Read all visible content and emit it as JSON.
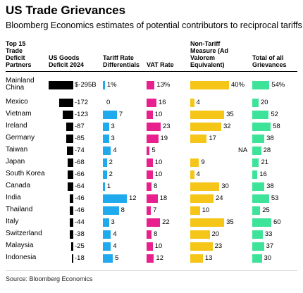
{
  "title": "US Trade Grievances",
  "subtitle": "Bloomberg Economics estimates of potential contributors to reciprocal tariffs",
  "source": "Source: Bloomberg Economics",
  "headers": {
    "partners": [
      "Top 15",
      "Trade",
      "Deficit",
      "Partners"
    ],
    "deficit": [
      "US Goods",
      "Deficit 2024"
    ],
    "tariff": [
      "Tariff Rate",
      "Differentials"
    ],
    "vat": [
      "VAT Rate"
    ],
    "ntm": [
      "Non-Tariff",
      "Measure (Ad",
      "Valorem",
      "Equivalent)"
    ],
    "total": [
      "Total of all",
      "Grievances"
    ]
  },
  "colors": {
    "deficit": "#000000",
    "tariff": "#20aaee",
    "vat": "#e8208e",
    "ntm": "#f5c518",
    "total": "#3ee39a"
  },
  "chart_data": {
    "type": "table",
    "columns": [
      "Top 15 Trade Deficit Partners",
      "US Goods Deficit 2024",
      "Tariff Rate Differentials",
      "VAT Rate",
      "Non-Tariff Measure (Ad Valorem Equivalent)",
      "Total of all Grievances"
    ],
    "rows": [
      {
        "country": [
          "Mainland",
          "China"
        ],
        "deficit": -295,
        "deficit_label": "$-295B",
        "tariff": 1,
        "tariff_label": "1%",
        "vat": 13,
        "vat_label": "13%",
        "ntm": 40,
        "ntm_label": "40%",
        "total": 54,
        "total_label": "54%"
      },
      {
        "country": [
          "Mexico"
        ],
        "deficit": -172,
        "deficit_label": "-172",
        "tariff": 0,
        "tariff_label": "0",
        "vat": 16,
        "vat_label": "16",
        "ntm": 4,
        "ntm_label": "4",
        "total": 20,
        "total_label": "20"
      },
      {
        "country": [
          "Vietnam"
        ],
        "deficit": -123,
        "deficit_label": "-123",
        "tariff": 7,
        "tariff_label": "7",
        "vat": 10,
        "vat_label": "10",
        "ntm": 35,
        "ntm_label": "35",
        "total": 52,
        "total_label": "52"
      },
      {
        "country": [
          "Ireland"
        ],
        "deficit": -87,
        "deficit_label": "-87",
        "tariff": 3,
        "tariff_label": "3",
        "vat": 23,
        "vat_label": "23",
        "ntm": 32,
        "ntm_label": "32",
        "total": 58,
        "total_label": "58"
      },
      {
        "country": [
          "Germany"
        ],
        "deficit": -85,
        "deficit_label": "-85",
        "tariff": 3,
        "tariff_label": "3",
        "vat": 19,
        "vat_label": "19",
        "ntm": 17,
        "ntm_label": "17",
        "total": 38,
        "total_label": "38"
      },
      {
        "country": [
          "Taiwan"
        ],
        "deficit": -74,
        "deficit_label": "-74",
        "tariff": 4,
        "tariff_label": "4",
        "vat": 5,
        "vat_label": "5",
        "ntm": null,
        "ntm_label": "NA",
        "total": 28,
        "total_label": "28"
      },
      {
        "country": [
          "Japan"
        ],
        "deficit": -68,
        "deficit_label": "-68",
        "tariff": 2,
        "tariff_label": "2",
        "vat": 10,
        "vat_label": "10",
        "ntm": 9,
        "ntm_label": "9",
        "total": 21,
        "total_label": "21"
      },
      {
        "country": [
          "South Korea"
        ],
        "deficit": -66,
        "deficit_label": "-66",
        "tariff": 2,
        "tariff_label": "2",
        "vat": 10,
        "vat_label": "10",
        "ntm": 4,
        "ntm_label": "4",
        "total": 16,
        "total_label": "16"
      },
      {
        "country": [
          "Canada"
        ],
        "deficit": -64,
        "deficit_label": "-64",
        "tariff": 1,
        "tariff_label": "1",
        "vat": 8,
        "vat_label": "8",
        "ntm": 30,
        "ntm_label": "30",
        "total": 38,
        "total_label": "38"
      },
      {
        "country": [
          "India"
        ],
        "deficit": -46,
        "deficit_label": "-46",
        "tariff": 12,
        "tariff_label": "12",
        "vat": 18,
        "vat_label": "18",
        "ntm": 24,
        "ntm_label": "24",
        "total": 53,
        "total_label": "53"
      },
      {
        "country": [
          "Thailand"
        ],
        "deficit": -46,
        "deficit_label": "-46",
        "tariff": 8,
        "tariff_label": "8",
        "vat": 7,
        "vat_label": "7",
        "ntm": 10,
        "ntm_label": "10",
        "total": 25,
        "total_label": "25"
      },
      {
        "country": [
          "Italy"
        ],
        "deficit": -44,
        "deficit_label": "-44",
        "tariff": 3,
        "tariff_label": "3",
        "vat": 22,
        "vat_label": "22",
        "ntm": 35,
        "ntm_label": "35",
        "total": 60,
        "total_label": "60"
      },
      {
        "country": [
          "Switzerland"
        ],
        "deficit": -38,
        "deficit_label": "-38",
        "tariff": 4,
        "tariff_label": "4",
        "vat": 8,
        "vat_label": "8",
        "ntm": 20,
        "ntm_label": "20",
        "total": 33,
        "total_label": "33"
      },
      {
        "country": [
          "Malaysia"
        ],
        "deficit": -25,
        "deficit_label": "-25",
        "tariff": 4,
        "tariff_label": "4",
        "vat": 10,
        "vat_label": "10",
        "ntm": 23,
        "ntm_label": "23",
        "total": 37,
        "total_label": "37"
      },
      {
        "country": [
          "Indonesia"
        ],
        "deficit": -18,
        "deficit_label": "-18",
        "tariff": 5,
        "tariff_label": "5",
        "vat": 12,
        "vat_label": "12",
        "ntm": 13,
        "ntm_label": "13",
        "total": 30,
        "total_label": "30"
      }
    ]
  }
}
